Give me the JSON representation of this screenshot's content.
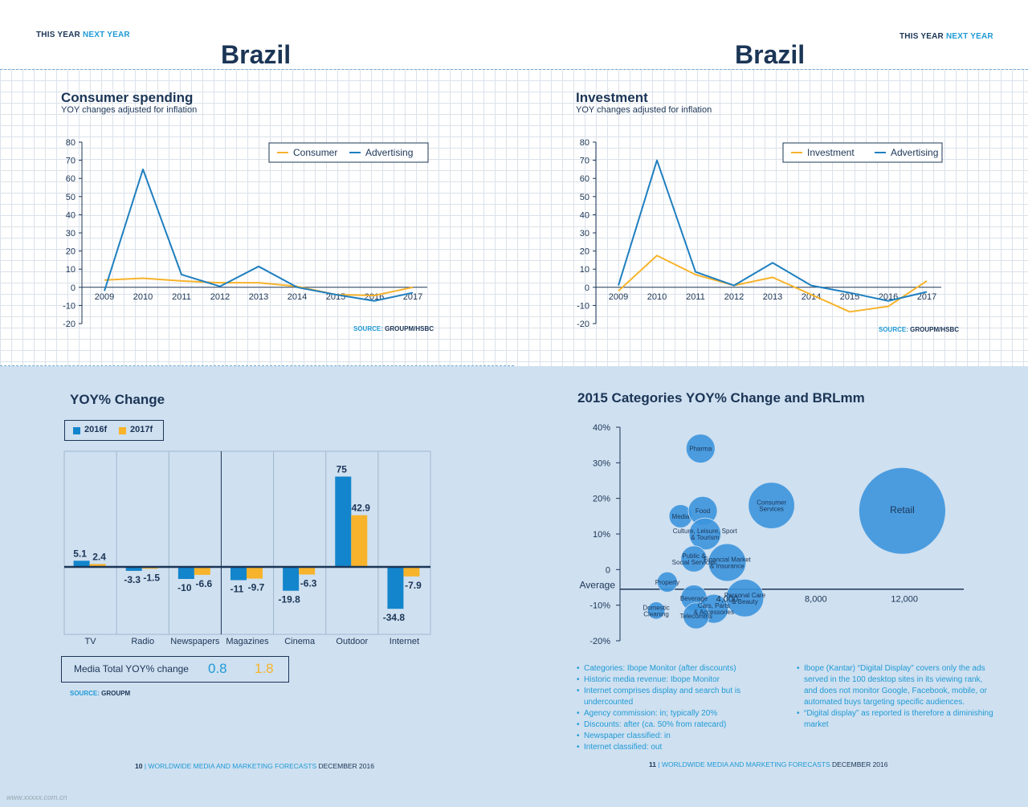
{
  "colors": {
    "navy": "#1b3556",
    "blue": "#1f7fbf",
    "bar_blue": "#1385cc",
    "yellow": "#f7b32b",
    "light_blue": "#1f9ad6",
    "bubble": "#3c95dd",
    "panel": "#cfe0f0"
  },
  "left_page": {
    "tag": {
      "this_year": "THIS YEAR",
      "next_year": "NEXT YEAR"
    },
    "country": "Brazil",
    "source": {
      "label": "SOURCE:",
      "value": "GROUPM/HSBC"
    },
    "footer": {
      "page": "10",
      "sep": "|",
      "text": "WORLDWIDE MEDIA AND MARKETING FORECASTS",
      "date": "DECEMBER 2016"
    },
    "media_total": {
      "label": "Media Total YOY% change",
      "value_2016": "0.8",
      "value_2017": "1.8"
    },
    "yoy_source": {
      "label": "SOURCE:",
      "value": "GROUPM"
    }
  },
  "right_page": {
    "tag": {
      "this_year": "THIS YEAR",
      "next_year": "NEXT YEAR"
    },
    "country": "Brazil",
    "source": {
      "label": "SOURCE:",
      "value": "GROUPM/HSBC"
    },
    "footer": {
      "page": "11",
      "sep": "|",
      "text": "WORLDWIDE MEDIA AND MARKETING FORECASTS",
      "date": "DECEMBER 2016"
    },
    "notes_left": [
      "Categories: Ibope Monitor (after discounts)",
      "Historic media revenue: Ibope Monitor",
      "Internet comprises display and search but is undercounted",
      "Agency commission: in; typically 20%",
      "Discounts: after (ca. 50% from ratecard)",
      "Newspaper classified: in",
      "Internet classified: out"
    ],
    "notes_right": [
      "Ibope (Kantar) “Digital Display” covers only the ads served in the 100 desktop sites in its viewing rank, and does not monitor Google, Facebook, mobile, or automated buys targeting specific audiences.",
      "“Digital display” as reported is therefore a diminishing market"
    ]
  },
  "watermark": "www.xxxxx.com.cn",
  "chart_data": [
    {
      "type": "line",
      "title": "Consumer spending",
      "subtitle": "YOY changes adjusted for inflation",
      "x": [
        "2009",
        "2010",
        "2011",
        "2012",
        "2013",
        "2014",
        "2015",
        "2016",
        "2017"
      ],
      "ylim": [
        -20,
        80
      ],
      "yticks": [
        80,
        70,
        60,
        50,
        40,
        30,
        20,
        10,
        0,
        -10,
        -20
      ],
      "legend_position": "top-right",
      "grid": true,
      "series": [
        {
          "name": "Consumer",
          "color": "#f7b32b",
          "values": [
            4,
            5,
            3.5,
            2.5,
            2.5,
            0.5,
            -4,
            -4.5,
            0
          ]
        },
        {
          "name": "Advertising",
          "color": "#1f7fbf",
          "values": [
            -2,
            65,
            7,
            0.5,
            11.5,
            0,
            -4,
            -7.5,
            -3
          ]
        }
      ]
    },
    {
      "type": "line",
      "title": "Investment",
      "subtitle": "YOY changes adjusted for inflation",
      "x": [
        "2009",
        "2010",
        "2011",
        "2012",
        "2013",
        "2014",
        "2015",
        "2016",
        "2017"
      ],
      "ylim": [
        -20,
        80
      ],
      "yticks": [
        80,
        70,
        60,
        50,
        40,
        30,
        20,
        10,
        0,
        -10,
        -20
      ],
      "legend_position": "top-right",
      "grid": true,
      "series": [
        {
          "name": "Investment",
          "color": "#f7b32b",
          "values": [
            -2,
            17.5,
            7,
            1,
            5.5,
            -4,
            -13.5,
            -10.5,
            3.5
          ]
        },
        {
          "name": "Advertising",
          "color": "#1f7fbf",
          "values": [
            1,
            70,
            8.5,
            1,
            13.5,
            1,
            -3,
            -7.5,
            -2.5
          ]
        }
      ]
    },
    {
      "type": "bar",
      "title": "YOY% Change",
      "categories": [
        "TV",
        "Radio",
        "Newspapers",
        "Magazines",
        "Cinema",
        "Outdoor",
        "Internet"
      ],
      "series": [
        {
          "name": "2016f",
          "color": "#1385cc",
          "values": [
            5.1,
            -3.3,
            -10,
            -11,
            -19.8,
            75,
            -34.8
          ],
          "labels": [
            "5.1",
            "-3.3",
            "-10",
            "-11",
            "-19.8",
            "75",
            "-34.8"
          ]
        },
        {
          "name": "2017f",
          "color": "#f7b32b",
          "values": [
            2.4,
            -1.5,
            -6.6,
            -9.7,
            -6.3,
            42.9,
            -7.9
          ],
          "labels": [
            "2.4",
            "-1.5",
            "-6.6",
            "-9.7",
            "-6.3",
            "42.9",
            "-7.9"
          ]
        }
      ],
      "legend_position": "top-left"
    },
    {
      "type": "scatter",
      "title": "2015 Categories YOY% Change and BRLmm",
      "yticks": [
        "40%",
        "30%",
        "20%",
        "10%",
        "0",
        "-10%",
        "-20%"
      ],
      "ytick_values": [
        40,
        30,
        20,
        10,
        0,
        -10,
        -20
      ],
      "average_label": "Average",
      "average_y": -5.5,
      "xticks": [
        "4,000",
        "8,000",
        "12,000"
      ],
      "xtick_values": [
        4000,
        8000,
        12000
      ],
      "ylim": [
        -20,
        40
      ],
      "points": [
        {
          "label": "Pharma",
          "x": 2800,
          "y": 34,
          "size": 1
        },
        {
          "label": "Media",
          "x": 1900,
          "y": 15,
          "size": 0.8
        },
        {
          "label": "Food",
          "x": 2900,
          "y": 16.5,
          "size": 1
        },
        {
          "label": "Culture, Leisure, Sport & Tourism",
          "x": 3000,
          "y": 10,
          "size": 1.1
        },
        {
          "label": "Consumer Services",
          "x": 6000,
          "y": 18,
          "size": 1.6
        },
        {
          "label": "Retail",
          "x": 11900,
          "y": 16.5,
          "size": 3.0
        },
        {
          "label": "Public & Social Services",
          "x": 2500,
          "y": 3,
          "size": 0.9
        },
        {
          "label": "Financial Market & Insurance",
          "x": 4000,
          "y": 2,
          "size": 1.3
        },
        {
          "label": "Property",
          "x": 1300,
          "y": -3.5,
          "size": 0.7
        },
        {
          "label": "Beverage",
          "x": 2500,
          "y": -8,
          "size": 0.9
        },
        {
          "label": "Cars, Parts & Accessories",
          "x": 3400,
          "y": -11,
          "size": 1.0
        },
        {
          "label": "Personal Care & Beauty",
          "x": 4800,
          "y": -8,
          "size": 1.3
        },
        {
          "label": "Domestic Cleaning",
          "x": 800,
          "y": -11.5,
          "size": 0.6
        },
        {
          "label": "Telecomms",
          "x": 2600,
          "y": -13,
          "size": 0.9
        }
      ]
    }
  ]
}
